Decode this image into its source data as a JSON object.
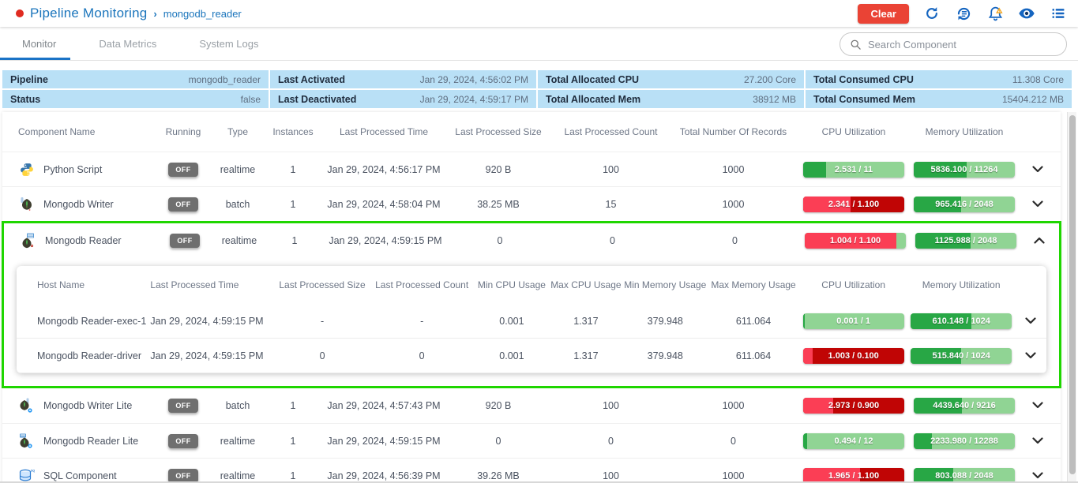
{
  "header": {
    "title": "Pipeline Monitoring",
    "breadcrumb_separator": "›",
    "subtitle": "mongodb_reader",
    "clear_label": "Clear"
  },
  "tabs": [
    {
      "label": "Monitor",
      "active": true
    },
    {
      "label": "Data Metrics",
      "active": false
    },
    {
      "label": "System Logs",
      "active": false
    }
  ],
  "search": {
    "placeholder": "Search Component"
  },
  "summary": {
    "rows": [
      [
        {
          "label": "Pipeline",
          "value": "mongodb_reader"
        },
        {
          "label": "Last Activated",
          "value": "Jan 29, 2024, 4:56:02 PM"
        },
        {
          "label": "Total Allocated CPU",
          "value": "27.200 Core"
        },
        {
          "label": "Total Consumed CPU",
          "value": "11.308 Core"
        }
      ],
      [
        {
          "label": "Status",
          "value": "false"
        },
        {
          "label": "Last Deactivated",
          "value": "Jan 29, 2024, 4:59:17 PM"
        },
        {
          "label": "Total Allocated Mem",
          "value": "38912 MB"
        },
        {
          "label": "Total Consumed Mem",
          "value": "15404.212 MB"
        }
      ]
    ]
  },
  "colors": {
    "accent_blue": "#1565c0",
    "title_blue": "#1b75bc",
    "clear_red": "#ea4335",
    "bar_green_fill": "#28a745",
    "bar_green_bg": "#90d494",
    "bar_red_fill": "#fb3e55",
    "bar_red_bg": "#c00505",
    "highlight_green": "#1fd600",
    "summary_bg": "#b9e0f6",
    "off_badge": "#6f6f6f"
  },
  "table": {
    "headers": [
      "Component Name",
      "Running",
      "Type",
      "Instances",
      "Last Processed Time",
      "Last Processed Size",
      "Last Processed Count",
      "Total Number Of Records",
      "CPU Utilization",
      "Memory Utilization"
    ],
    "rows": [
      {
        "name": "Python Script",
        "running": "OFF",
        "type": "realtime",
        "instances": "1",
        "last_time": "Jan 29, 2024, 4:56:17 PM",
        "last_size": "920 B",
        "last_count": "100",
        "total_records": "1000",
        "cpu": {
          "text": "2.531 / 11",
          "pct": 23,
          "fill": "#28a745",
          "bg": "#90d494"
        },
        "mem": {
          "text": "5836.100 / 11264",
          "pct": 52,
          "fill": "#28a745",
          "bg": "#90d494"
        }
      },
      {
        "name": "Mongodb Writer",
        "running": "OFF",
        "type": "batch",
        "instances": "1",
        "last_time": "Jan 29, 2024, 4:58:04 PM",
        "last_size": "38.25 MB",
        "last_count": "15",
        "total_records": "1000",
        "cpu": {
          "text": "2.341 / 1.100",
          "pct": 47,
          "fill": "#fb3e55",
          "bg": "#c00505"
        },
        "mem": {
          "text": "965.416 / 2048",
          "pct": 47,
          "fill": "#28a745",
          "bg": "#90d494"
        }
      },
      {
        "name": "Mongodb Reader",
        "running": "OFF",
        "type": "realtime",
        "instances": "1",
        "last_time": "Jan 29, 2024, 4:59:15 PM",
        "last_size": "0",
        "last_count": "0",
        "total_records": "0",
        "cpu": {
          "text": "1.004 / 1.100",
          "pct": 91,
          "fill": "#fb3e55",
          "bg": "#90d494"
        },
        "mem": {
          "text": "1125.988 / 2048",
          "pct": 55,
          "fill": "#28a745",
          "bg": "#90d494"
        }
      },
      {
        "name": "Mongodb Writer Lite",
        "running": "OFF",
        "type": "batch",
        "instances": "1",
        "last_time": "Jan 29, 2024, 4:57:43 PM",
        "last_size": "920 B",
        "last_count": "100",
        "total_records": "1000",
        "cpu": {
          "text": "2.973 / 0.900",
          "pct": 30,
          "fill": "#fb3e55",
          "bg": "#c00505"
        },
        "mem": {
          "text": "4439.640 / 9216",
          "pct": 48,
          "fill": "#28a745",
          "bg": "#90d494"
        }
      },
      {
        "name": "Mongodb Reader Lite",
        "running": "OFF",
        "type": "realtime",
        "instances": "1",
        "last_time": "Jan 29, 2024, 4:59:15 PM",
        "last_size": "0",
        "last_count": "0",
        "total_records": "0",
        "cpu": {
          "text": "0.494 / 12",
          "pct": 4,
          "fill": "#28a745",
          "bg": "#90d494"
        },
        "mem": {
          "text": "2233.980 / 12288",
          "pct": 18,
          "fill": "#28a745",
          "bg": "#90d494"
        }
      },
      {
        "name": "SQL Component",
        "running": "OFF",
        "type": "realtime",
        "instances": "1",
        "last_time": "Jan 29, 2024, 4:56:39 PM",
        "last_size": "39.26 MB",
        "last_count": "100",
        "total_records": "1000",
        "cpu": {
          "text": "1.965 / 1.100",
          "pct": 56,
          "fill": "#fb3e55",
          "bg": "#c00505"
        },
        "mem": {
          "text": "803.088 / 2048",
          "pct": 39,
          "fill": "#28a745",
          "bg": "#90d494"
        }
      }
    ]
  },
  "subtable": {
    "headers": [
      "Host Name",
      "Last Processed Time",
      "Last Processed Size",
      "Last Processed Count",
      "Min CPU Usage",
      "Max CPU Usage",
      "Min Memory Usage",
      "Max Memory Usage",
      "CPU Utilization",
      "Memory Utilization"
    ],
    "rows": [
      {
        "host": "Mongodb Reader-exec-1",
        "last_time": "Jan 29, 2024, 4:59:15 PM",
        "last_size": "-",
        "last_count": "-",
        "min_cpu": "0.001",
        "max_cpu": "1.317",
        "min_mem": "379.948",
        "max_mem": "611.064",
        "cpu": {
          "text": "0.001 / 1",
          "pct": 2,
          "fill": "#28a745",
          "bg": "#90d494"
        },
        "mem": {
          "text": "610.148 / 1024",
          "pct": 60,
          "fill": "#28a745",
          "bg": "#90d494"
        }
      },
      {
        "host": "Mongodb Reader-driver",
        "last_time": "Jan 29, 2024, 4:59:15 PM",
        "last_size": "0",
        "last_count": "0",
        "min_cpu": "0.001",
        "max_cpu": "1.317",
        "min_mem": "379.948",
        "max_mem": "611.064",
        "cpu": {
          "text": "1.003 / 0.100",
          "pct": 10,
          "fill": "#fb3e55",
          "bg": "#c00505"
        },
        "mem": {
          "text": "515.840 / 1024",
          "pct": 50,
          "fill": "#28a745",
          "bg": "#90d494"
        }
      }
    ]
  }
}
